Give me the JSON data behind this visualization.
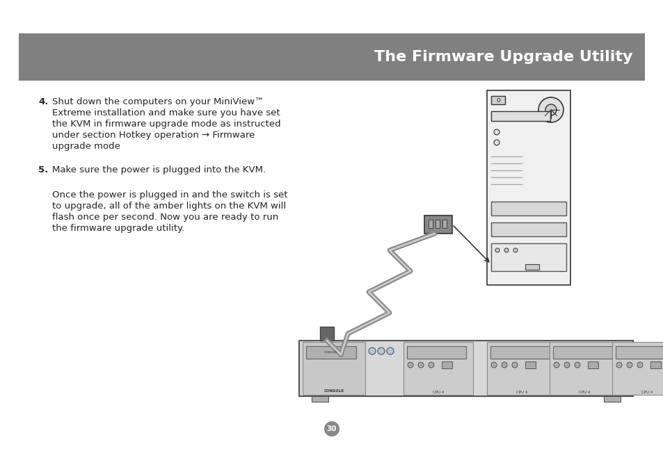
{
  "bg_color": "#ffffff",
  "header_color": "#808080",
  "header_text": "The Firmware Upgrade Utility",
  "header_text_color": "#ffffff",
  "header_fontsize": 16,
  "header_bold": true,
  "body_text_color": "#222222",
  "body_fontsize": 9.5,
  "step4_bold": "4.",
  "step4_text": " Shut down the computers on your MiniView™\n   Extreme installation and make sure you have set\n   the KVM in firmware upgrade mode as instructed\n   under section Hotkey operation → Firmware\n   upgrade mode",
  "step5_bold": "5.",
  "step5_text": " Make sure the power is plugged into the KVM.",
  "para_text": "   Once the power is plugged in and the switch is set\n   to upgrade, all of the amber lights on the KVM will\n   flash once per second. Now you are ready to run\n   the firmware upgrade utility.",
  "page_number": "30",
  "page_circle_color": "#888888",
  "page_text_color": "#ffffff"
}
